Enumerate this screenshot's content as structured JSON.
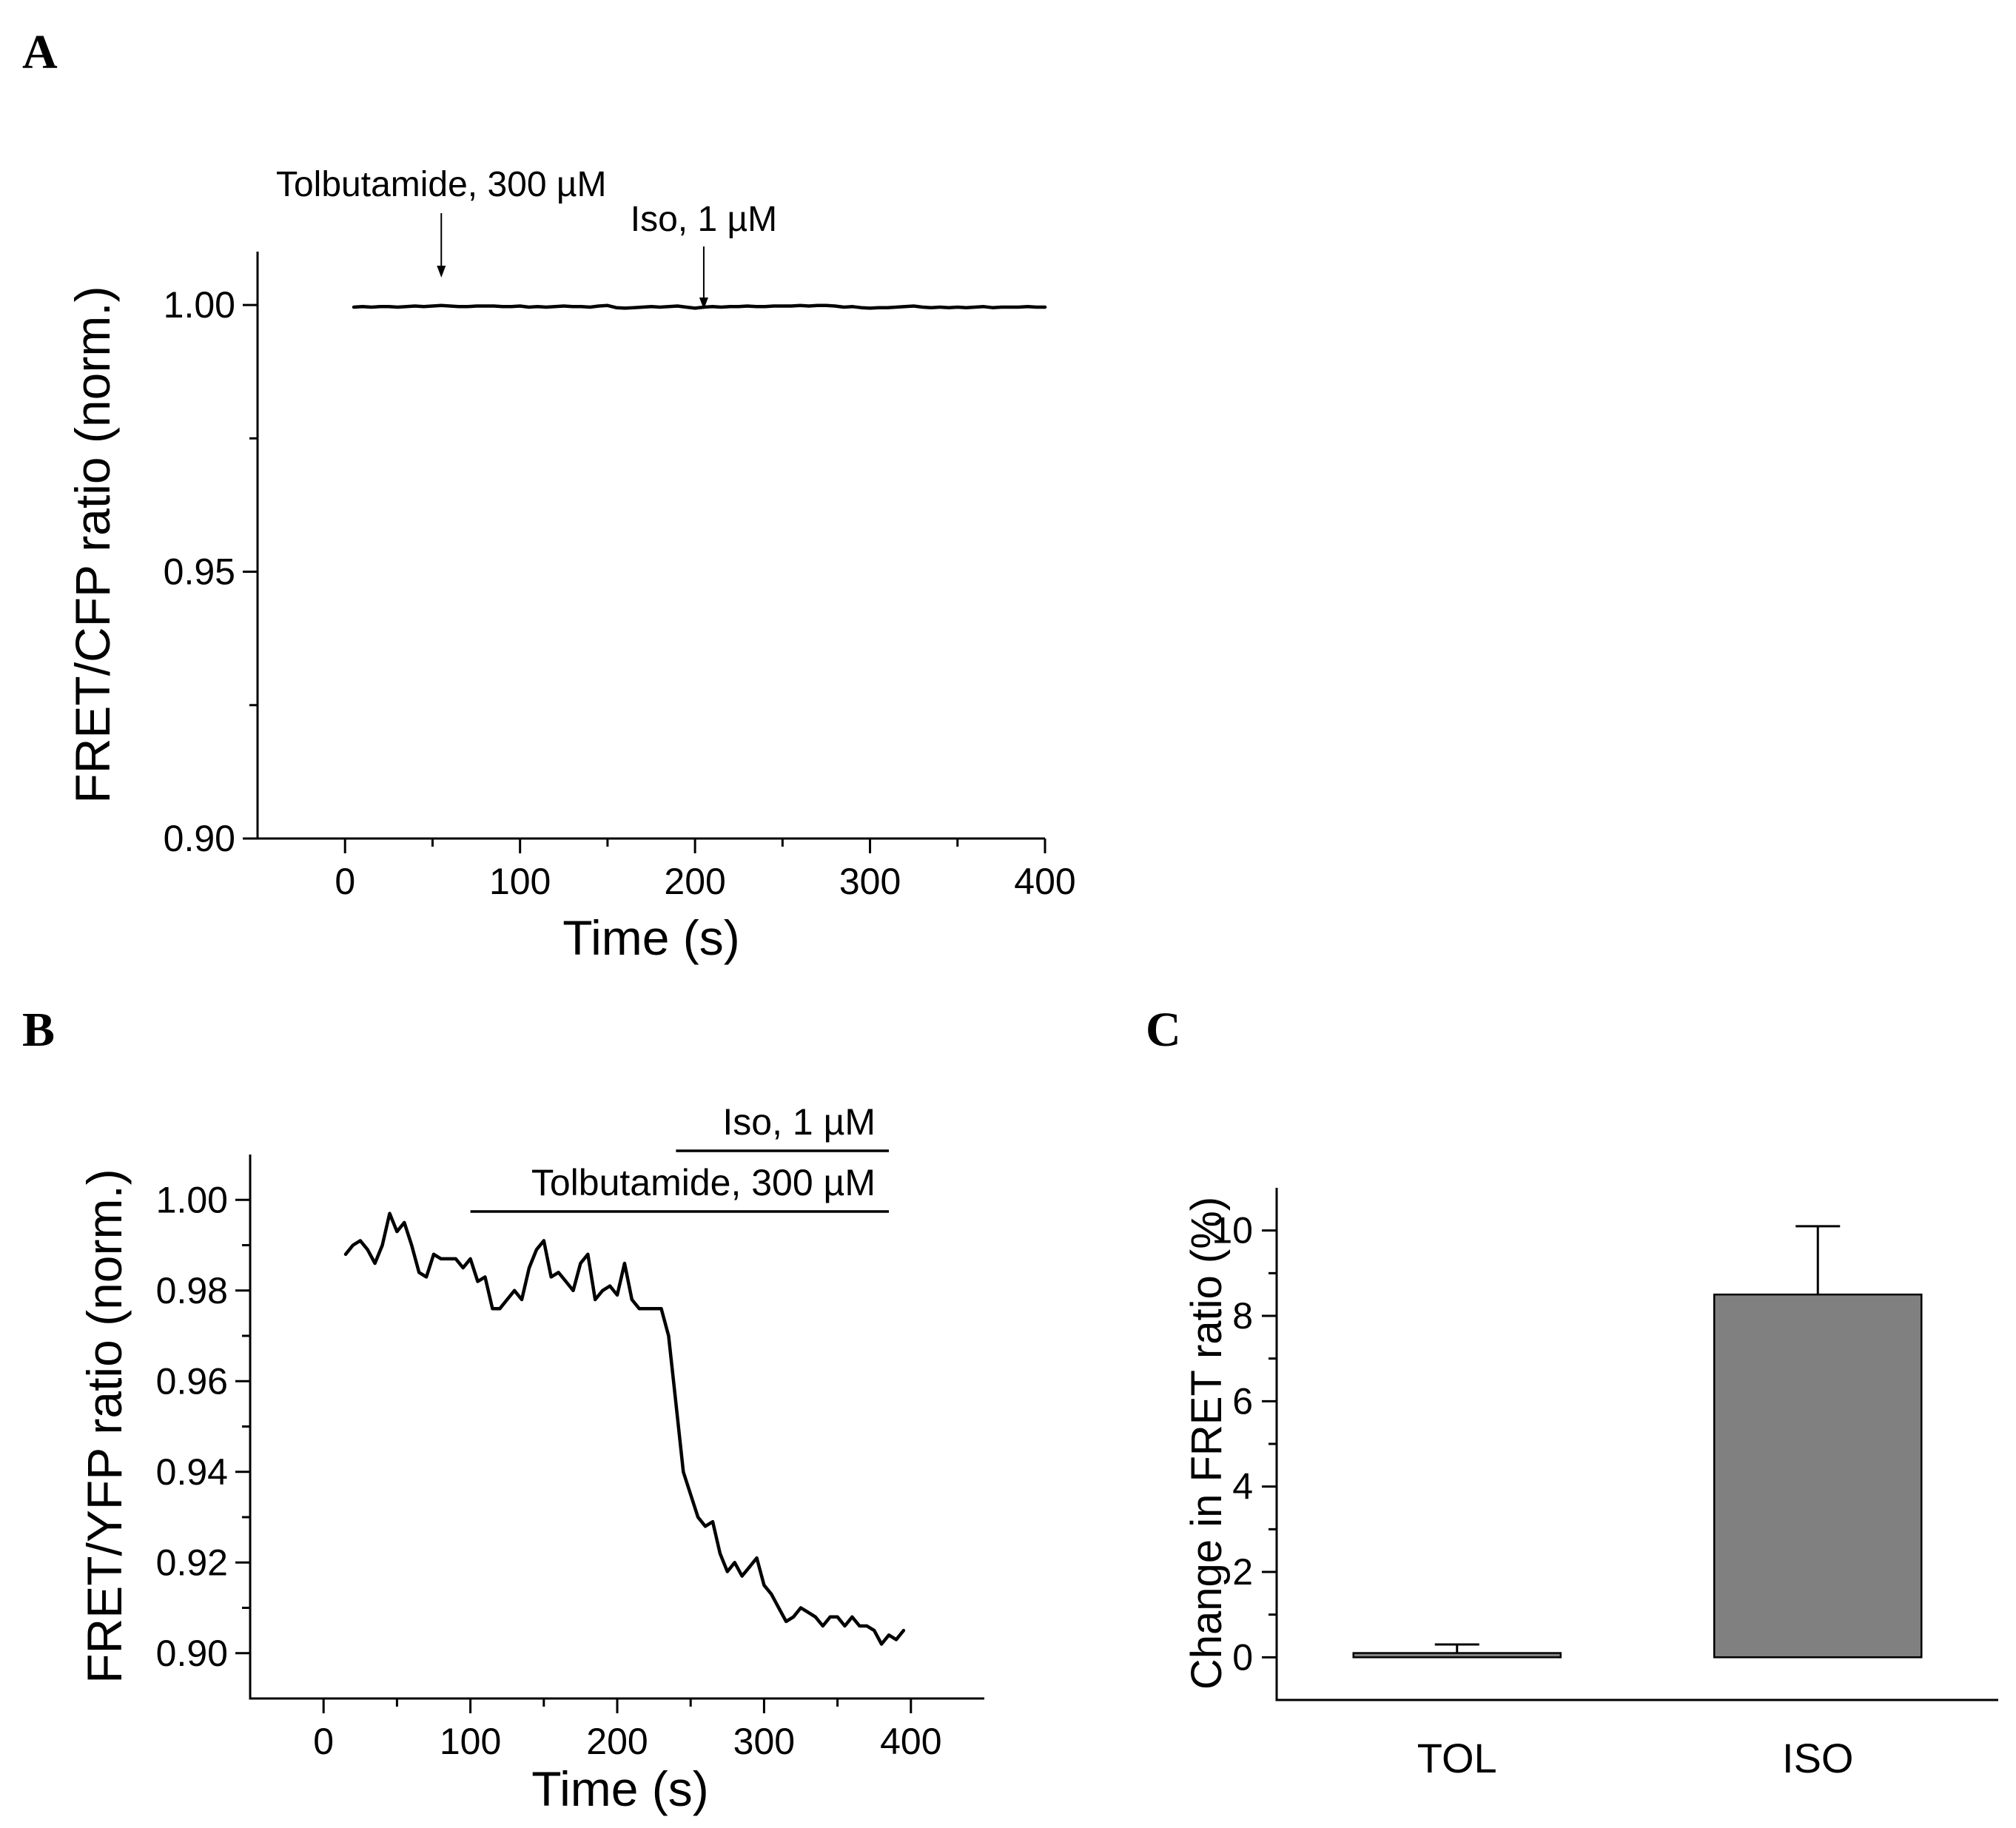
{
  "chart_data": [
    {
      "panel": "A",
      "type": "line",
      "xlabel": "Time (s)",
      "ylabel": "FRET/CFP ratio (norm.)",
      "xlim": [
        -50,
        400
      ],
      "ylim": [
        0.9,
        1.01
      ],
      "xticks": [
        0,
        100,
        200,
        300,
        400
      ],
      "xtick_labels": [
        "0",
        "100",
        "200",
        "300",
        "400"
      ],
      "yticks": [
        0.9,
        0.95,
        1.0
      ],
      "ytick_labels": [
        "0.90",
        "0.95",
        "1.00"
      ],
      "annotations": [
        {
          "text": "Tolbutamide, 300 µM",
          "x": 55,
          "kind": "arrow"
        },
        {
          "text": "Iso, 1 µM",
          "x": 205,
          "kind": "arrow"
        }
      ],
      "series": [
        {
          "name": "FRET/CFP",
          "x": [
            5,
            10,
            15,
            20,
            25,
            30,
            35,
            40,
            45,
            50,
            55,
            60,
            65,
            70,
            75,
            80,
            85,
            90,
            95,
            100,
            105,
            110,
            115,
            120,
            125,
            130,
            135,
            140,
            145,
            150,
            155,
            160,
            165,
            170,
            175,
            180,
            185,
            190,
            195,
            200,
            205,
            210,
            215,
            220,
            225,
            230,
            235,
            240,
            245,
            250,
            255,
            260,
            265,
            270,
            275,
            280,
            285,
            290,
            295,
            300,
            305,
            310,
            315,
            320,
            325,
            330,
            335,
            340,
            345,
            350,
            355,
            360,
            365,
            370,
            375,
            380,
            385,
            390,
            395,
            400
          ],
          "y": [
            0.9996,
            0.9997,
            0.9996,
            0.9997,
            0.9997,
            0.9996,
            0.9997,
            0.9998,
            0.9997,
            0.9998,
            0.9999,
            0.9998,
            0.9997,
            0.9997,
            0.9998,
            0.9998,
            0.9998,
            0.9997,
            0.9997,
            0.9998,
            0.9996,
            0.9997,
            0.9996,
            0.9997,
            0.9998,
            0.9997,
            0.9997,
            0.9996,
            0.9998,
            0.9999,
            0.9995,
            0.9994,
            0.9995,
            0.9996,
            0.9997,
            0.9996,
            0.9997,
            0.9998,
            0.9996,
            0.9994,
            0.9996,
            0.9997,
            0.9996,
            0.9997,
            0.9997,
            0.9998,
            0.9997,
            0.9997,
            0.9998,
            0.9998,
            0.9998,
            0.9999,
            0.9998,
            0.9999,
            0.9999,
            0.9998,
            0.9996,
            0.9997,
            0.9995,
            0.9994,
            0.9995,
            0.9995,
            0.9996,
            0.9997,
            0.9998,
            0.9996,
            0.9995,
            0.9996,
            0.9995,
            0.9996,
            0.9995,
            0.9996,
            0.9997,
            0.9995,
            0.9996,
            0.9996,
            0.9996,
            0.9997,
            0.9996,
            0.9996
          ]
        }
      ]
    },
    {
      "panel": "B",
      "type": "line",
      "xlabel": "Time (s)",
      "ylabel": "FRET/YFP ratio (norm.)",
      "xlim": [
        -50,
        450
      ],
      "ylim": [
        0.89,
        1.01
      ],
      "xticks": [
        0,
        100,
        200,
        300,
        400
      ],
      "xtick_labels": [
        "0",
        "100",
        "200",
        "300",
        "400"
      ],
      "yticks": [
        0.9,
        0.92,
        0.94,
        0.96,
        0.98,
        1.0
      ],
      "ytick_labels": [
        "0.90",
        "0.92",
        "0.94",
        "0.96",
        "0.98",
        "1.00"
      ],
      "annotations": [
        {
          "text": "Iso, 1 µM",
          "x_start": 240,
          "x_end": 385,
          "kind": "bar"
        },
        {
          "text": "Tolbutamide, 300 µM",
          "x_start": 100,
          "x_end": 385,
          "kind": "bar"
        }
      ],
      "series": [
        {
          "name": "FRET/YFP",
          "x": [
            15,
            20,
            25,
            30,
            35,
            40,
            45,
            50,
            55,
            60,
            65,
            70,
            75,
            80,
            85,
            90,
            95,
            100,
            105,
            110,
            115,
            120,
            125,
            130,
            135,
            140,
            145,
            150,
            155,
            160,
            165,
            170,
            175,
            180,
            185,
            190,
            195,
            200,
            205,
            210,
            215,
            220,
            225,
            230,
            235,
            240,
            245,
            250,
            255,
            260,
            265,
            270,
            275,
            280,
            285,
            290,
            295,
            300,
            305,
            310,
            315,
            320,
            325,
            330,
            335,
            340,
            345,
            350,
            355,
            360,
            365,
            370,
            375,
            380,
            385,
            390,
            395
          ],
          "y": [
            0.988,
            0.99,
            0.991,
            0.989,
            0.986,
            0.99,
            0.997,
            0.993,
            0.995,
            0.99,
            0.984,
            0.983,
            0.988,
            0.987,
            0.987,
            0.987,
            0.985,
            0.987,
            0.982,
            0.983,
            0.976,
            0.976,
            0.978,
            0.98,
            0.978,
            0.985,
            0.989,
            0.991,
            0.983,
            0.984,
            0.982,
            0.98,
            0.986,
            0.988,
            0.978,
            0.98,
            0.981,
            0.979,
            0.986,
            0.978,
            0.976,
            0.976,
            0.976,
            0.976,
            0.97,
            0.955,
            0.94,
            0.935,
            0.93,
            0.928,
            0.929,
            0.922,
            0.918,
            0.92,
            0.917,
            0.919,
            0.921,
            0.915,
            0.913,
            0.91,
            0.907,
            0.908,
            0.91,
            0.909,
            0.908,
            0.906,
            0.908,
            0.908,
            0.906,
            0.908,
            0.906,
            0.906,
            0.905,
            0.902,
            0.904,
            0.903,
            0.905
          ]
        }
      ]
    },
    {
      "panel": "C",
      "type": "bar",
      "ylabel": "Change in FRET ratio (%)",
      "ylim": [
        -1,
        11
      ],
      "yticks": [
        0,
        2,
        4,
        6,
        8,
        10
      ],
      "ytick_labels": [
        "0",
        "2",
        "4",
        "6",
        "8",
        "10"
      ],
      "categories": [
        "TOL",
        "ISO"
      ],
      "values": [
        0.1,
        8.5
      ],
      "errors": [
        0.2,
        1.6
      ]
    }
  ],
  "panel_labels": [
    "A",
    "B",
    "C"
  ]
}
